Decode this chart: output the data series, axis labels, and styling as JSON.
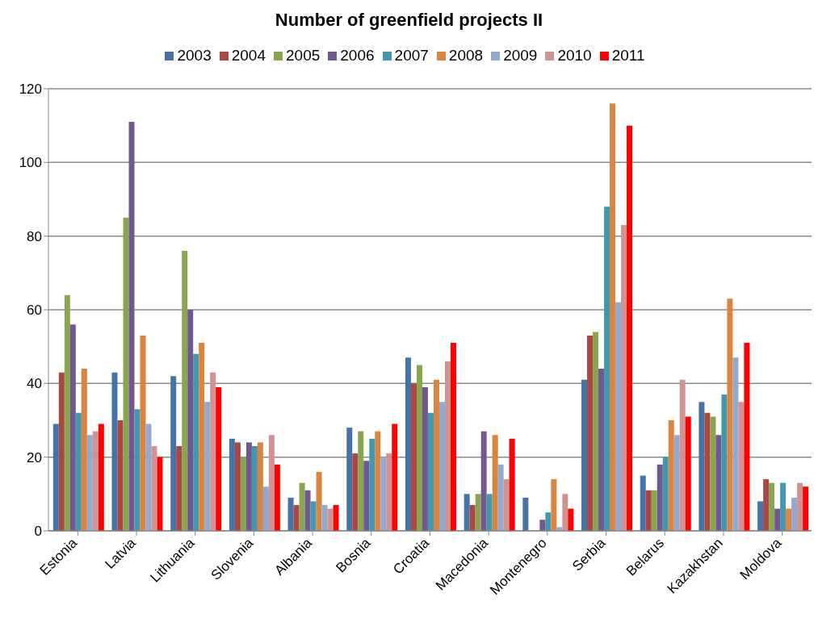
{
  "chart_data": {
    "type": "bar",
    "title": "Number of greenfield projects II",
    "categories": [
      "Estonia",
      "Latvia",
      "Lithuania",
      "Slovenia",
      "Albania",
      "Bosnia",
      "Croatia",
      "Macedonia",
      "Montenegro",
      "Serbia",
      "Belarus",
      "Kazakhstan",
      "Moldova"
    ],
    "series": [
      {
        "name": "2003",
        "color": "#4572a7",
        "values": [
          29,
          43,
          42,
          25,
          9,
          28,
          47,
          10,
          9,
          41,
          15,
          35,
          8
        ]
      },
      {
        "name": "2004",
        "color": "#aa4643",
        "values": [
          43,
          30,
          23,
          24,
          7,
          21,
          40,
          7,
          0,
          53,
          11,
          32,
          14
        ]
      },
      {
        "name": "2005",
        "color": "#89a54e",
        "values": [
          64,
          85,
          76,
          20,
          13,
          27,
          45,
          10,
          0,
          54,
          11,
          31,
          13
        ]
      },
      {
        "name": "2006",
        "color": "#71588f",
        "values": [
          56,
          111,
          60,
          24,
          11,
          19,
          39,
          27,
          3,
          44,
          18,
          26,
          6
        ]
      },
      {
        "name": "2007",
        "color": "#4198af",
        "values": [
          32,
          33,
          48,
          23,
          8,
          25,
          32,
          10,
          5,
          88,
          20,
          37,
          13
        ]
      },
      {
        "name": "2008",
        "color": "#db843d",
        "values": [
          44,
          53,
          51,
          24,
          16,
          27,
          41,
          26,
          14,
          116,
          30,
          63,
          6
        ]
      },
      {
        "name": "2009",
        "color": "#93a9cf",
        "values": [
          26,
          29,
          35,
          12,
          7,
          20,
          35,
          18,
          1,
          62,
          26,
          47,
          9
        ]
      },
      {
        "name": "2010",
        "color": "#d19392",
        "values": [
          27,
          23,
          43,
          26,
          6,
          21,
          46,
          14,
          10,
          83,
          41,
          35,
          13
        ]
      },
      {
        "name": "2011",
        "color": "#ff0000",
        "values": [
          29,
          20,
          39,
          18,
          7,
          29,
          51,
          25,
          6,
          110,
          31,
          51,
          12
        ]
      }
    ],
    "ylim": [
      0,
      120
    ],
    "yticks": [
      0,
      20,
      40,
      60,
      80,
      100,
      120
    ],
    "grid": "y",
    "legend": "top"
  }
}
